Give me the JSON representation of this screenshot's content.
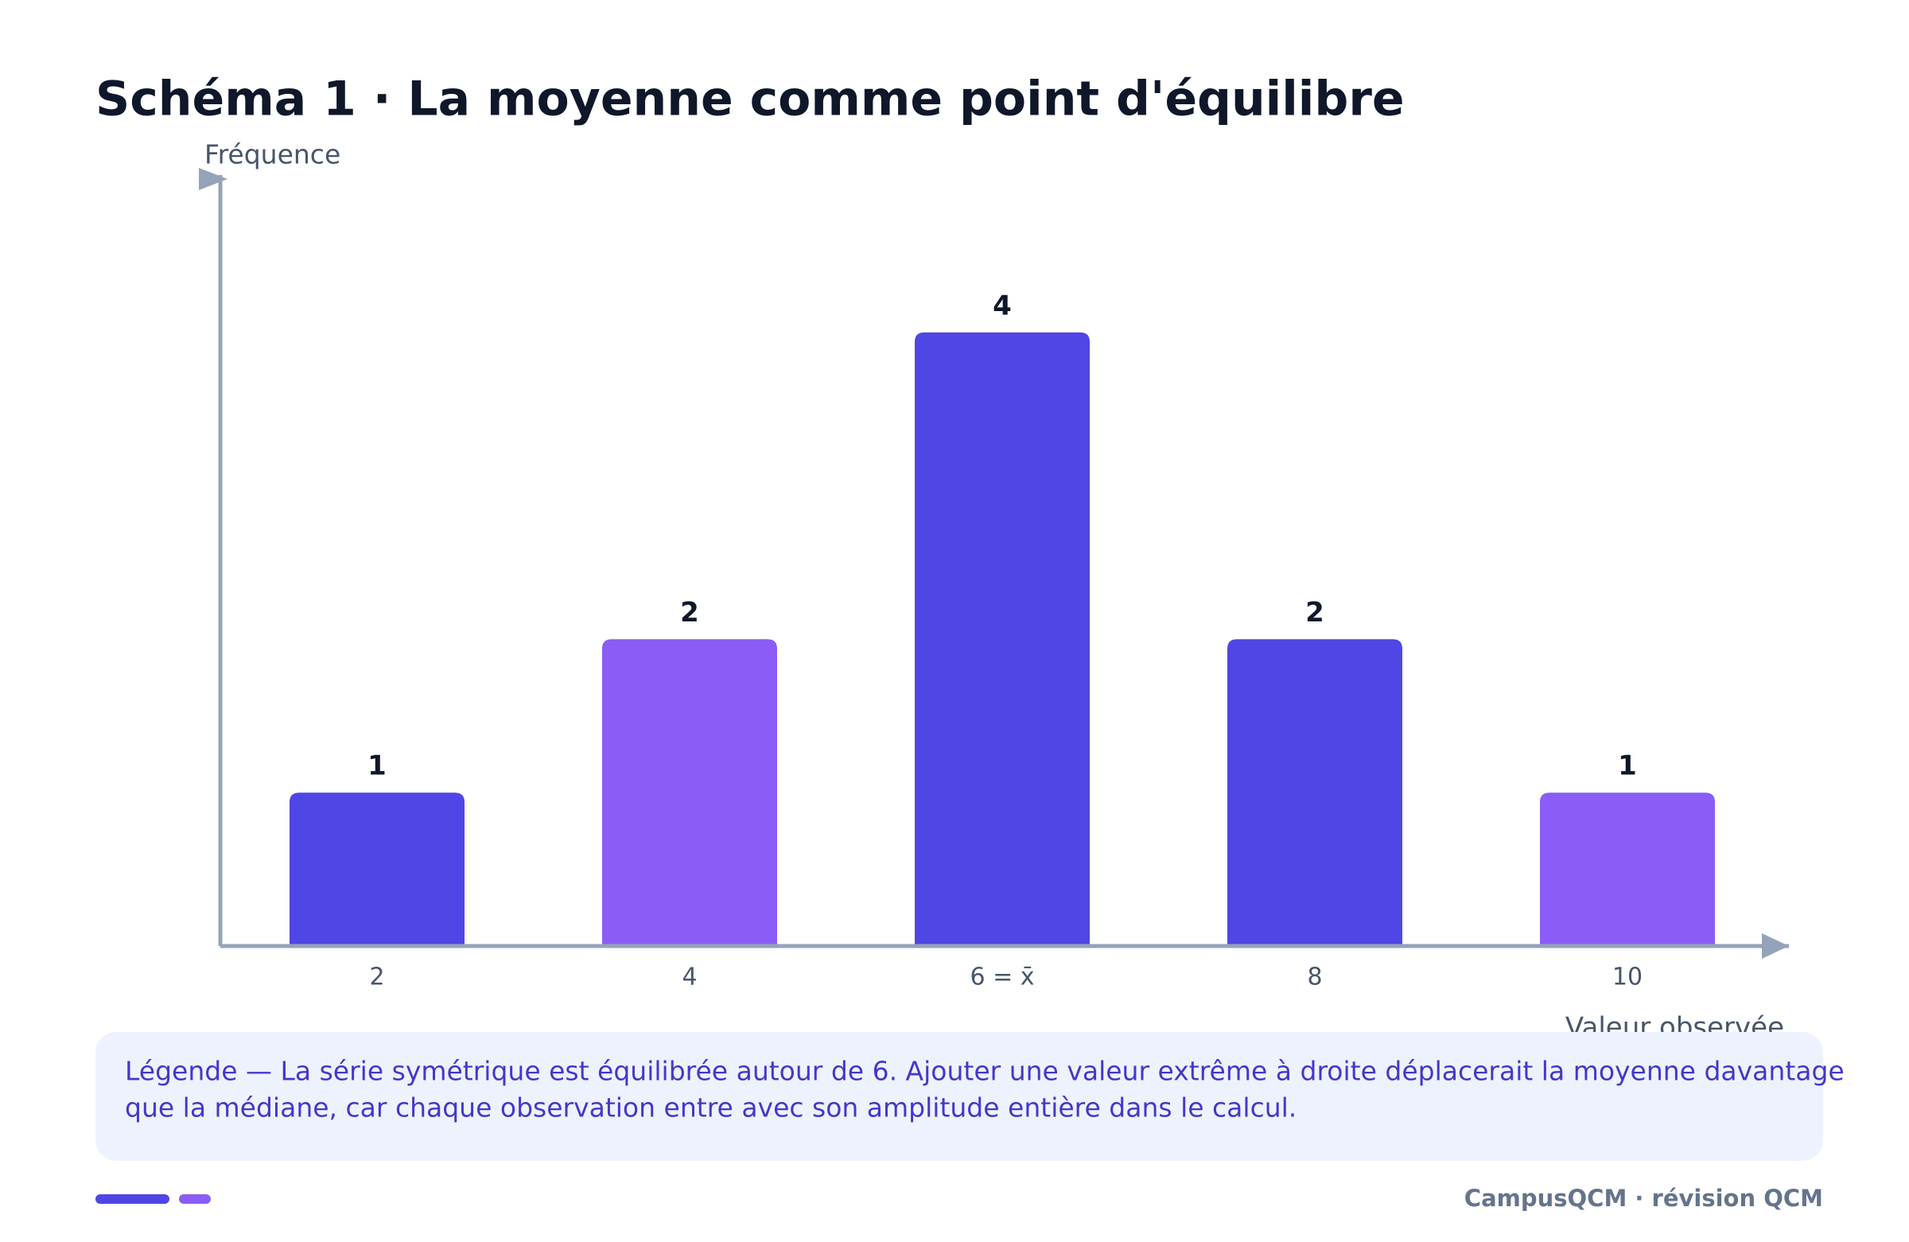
{
  "chart_data": {
    "type": "bar",
    "title": "Schéma 1 · La moyenne comme point d'équilibre",
    "y_label": "Fréquence",
    "x_label": "Valeur observée",
    "categories": [
      "2",
      "4",
      "6 = x̄",
      "8",
      "10"
    ],
    "values": [
      1,
      2,
      4,
      2,
      1
    ],
    "colors": [
      "#4f46e5",
      "#8b5cf6",
      "#4f46e5",
      "#4f46e5",
      "#8b5cf6"
    ],
    "ylim": [
      0,
      5
    ],
    "grid": false
  },
  "caption_lines": [
    "Légende — La série symétrique est équilibrée autour de 6. Ajouter une valeur extrême à droite déplacerait la moyenne davantage",
    "que la médiane, car chaque observation entre avec son amplitude entière dans le calcul."
  ],
  "footer": "CampusQCM · révision QCM"
}
